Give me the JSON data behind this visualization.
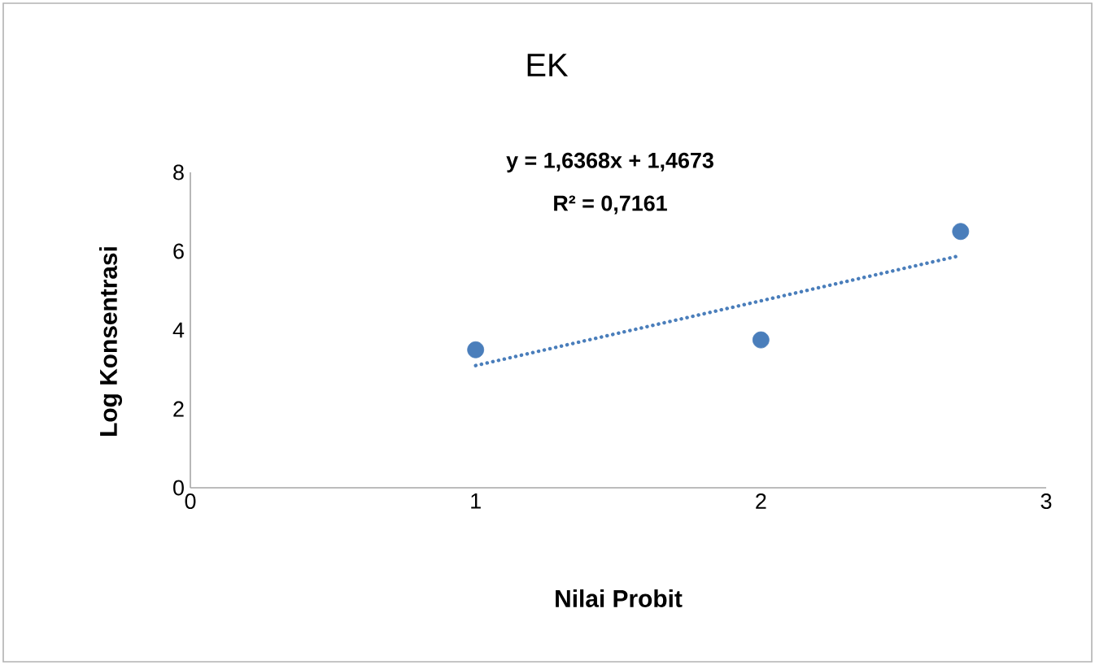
{
  "chart_data": {
    "type": "scatter",
    "title": "EK",
    "xlabel": "Nilai Probit",
    "ylabel": "Log Konsentrasi",
    "annotations": [
      "y = 1,6368x + 1,4673",
      "R² = 0,7161"
    ],
    "xlim": [
      0,
      3
    ],
    "ylim": [
      0,
      8
    ],
    "xticks": [
      0,
      1,
      2,
      3
    ],
    "yticks": [
      0,
      2,
      4,
      6,
      8
    ],
    "marker": "circle",
    "series": [
      {
        "color": "#4a7ebb",
        "x": [
          1,
          2,
          2.7
        ],
        "values": [
          3.5,
          3.75,
          6.5
        ]
      },
      {
        "type": "line",
        "color": "#4a7ebb",
        "x": [
          1,
          2.7
        ],
        "values": [
          3.1,
          5.89
        ],
        "line_style": "dotted",
        "marker": "none"
      }
    ]
  }
}
